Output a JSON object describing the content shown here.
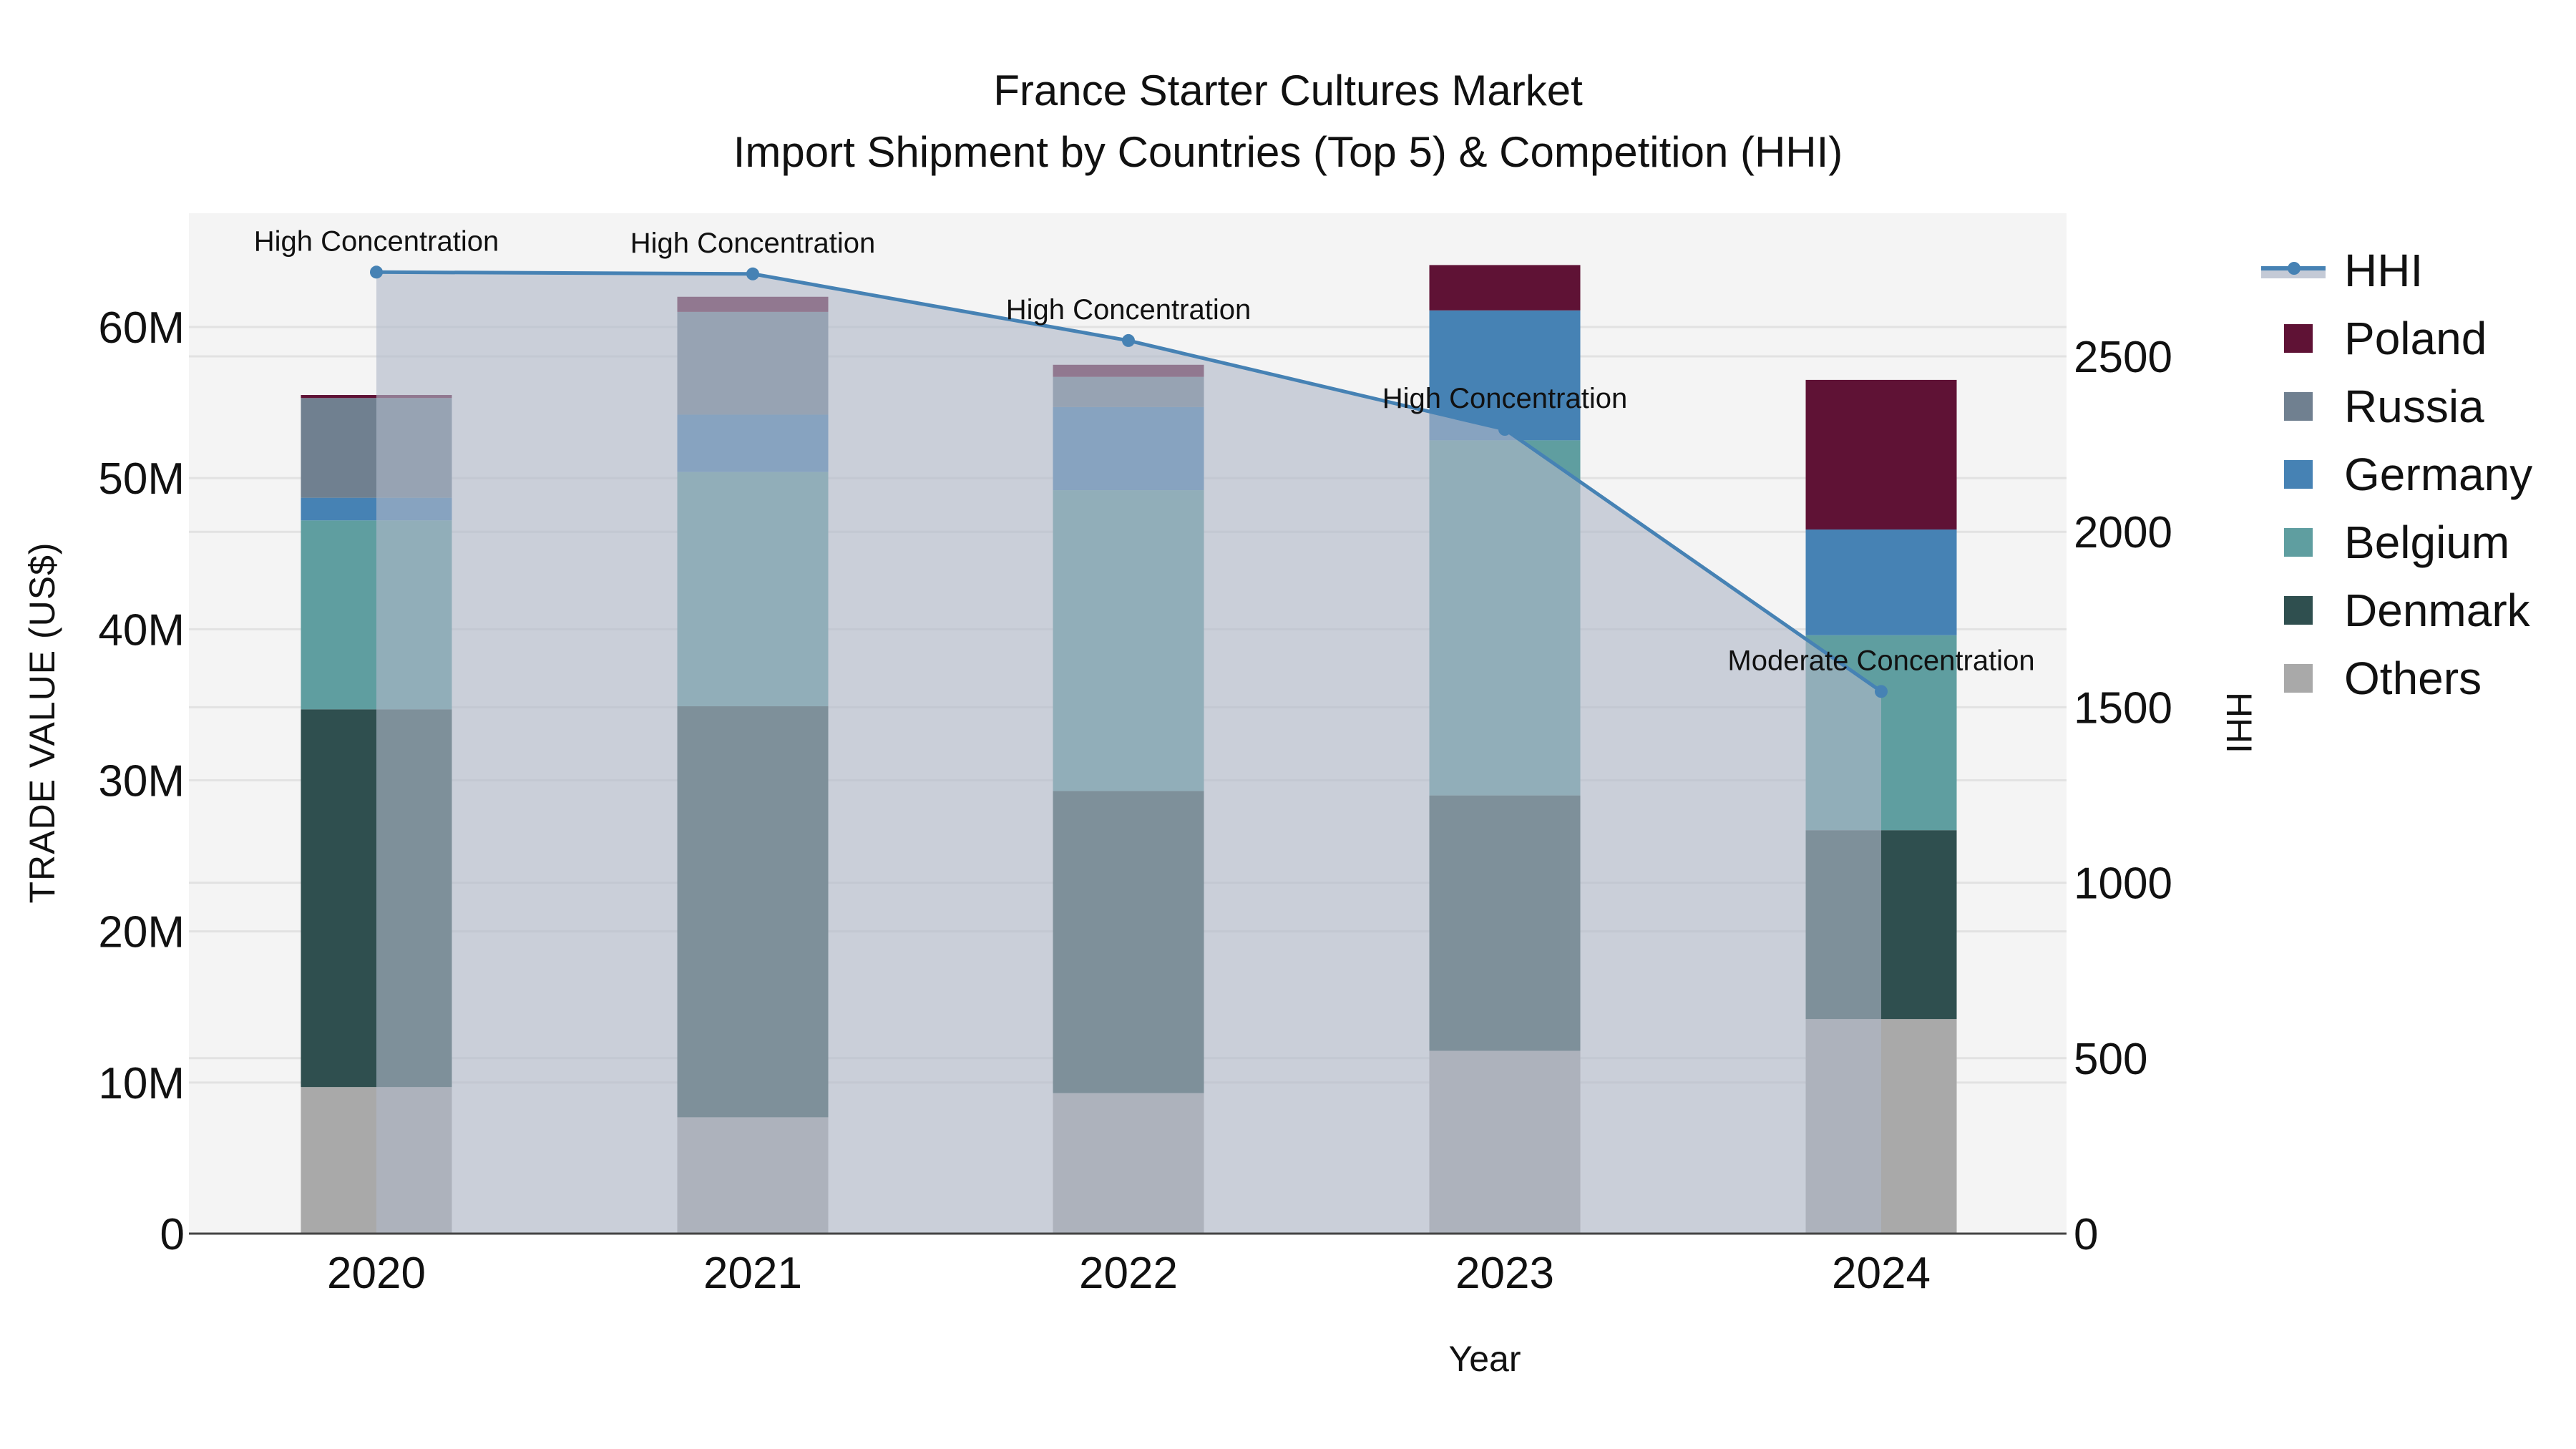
{
  "title": {
    "line1": "France Starter Cultures Market",
    "line2": "Import Shipment by Countries (Top 5) & Competition (HHI)"
  },
  "axes": {
    "x_title": "Year",
    "y_title": "TRADE VALUE (US$)",
    "y2_title": "HHI",
    "y_ticks": [
      "0",
      "10M",
      "20M",
      "30M",
      "40M",
      "50M",
      "60M"
    ],
    "y2_ticks": [
      "0",
      "500",
      "1000",
      "1500",
      "2000",
      "2500"
    ]
  },
  "legend": {
    "items": [
      {
        "label": "HHI",
        "type": "line",
        "color": "#4682B4"
      },
      {
        "label": "Poland",
        "type": "bar",
        "color": "#5F1235"
      },
      {
        "label": "Russia",
        "type": "bar",
        "color": "#708090"
      },
      {
        "label": "Germany",
        "type": "bar",
        "color": "#4682B4"
      },
      {
        "label": "Belgium",
        "type": "bar",
        "color": "#5F9EA0"
      },
      {
        "label": "Denmark",
        "type": "bar",
        "color": "#2F4F4F"
      },
      {
        "label": "Others",
        "type": "bar",
        "color": "#A9A9A9"
      }
    ]
  },
  "chart_data": {
    "type": "bar",
    "stacked": true,
    "title": "France Starter Cultures Market — Import Shipment by Countries (Top 5) & Competition (HHI)",
    "xlabel": "Year",
    "ylabel": "TRADE VALUE (US$)",
    "y2label": "HHI",
    "ylim": [
      0,
      67500000
    ],
    "y2lim": [
      0,
      2880
    ],
    "grid": true,
    "legend_position": "right",
    "categories": [
      "2020",
      "2021",
      "2022",
      "2023",
      "2024"
    ],
    "series": [
      {
        "name": "Others",
        "color": "#A9A9A9",
        "values": [
          9700000,
          7700000,
          9300000,
          12100000,
          14200000
        ]
      },
      {
        "name": "Denmark",
        "color": "#2F4F4F",
        "values": [
          25000000,
          27200000,
          20000000,
          16900000,
          12500000
        ]
      },
      {
        "name": "Belgium",
        "color": "#5F9EA0",
        "values": [
          12500000,
          15500000,
          19900000,
          23500000,
          12900000
        ]
      },
      {
        "name": "Germany",
        "color": "#4682B4",
        "values": [
          1500000,
          3800000,
          5500000,
          8600000,
          7000000
        ]
      },
      {
        "name": "Russia",
        "color": "#708090",
        "values": [
          6600000,
          6800000,
          2000000,
          0,
          0
        ]
      },
      {
        "name": "Poland",
        "color": "#5F1235",
        "values": [
          200000,
          1000000,
          800000,
          3000000,
          9900000
        ]
      }
    ],
    "line_series": {
      "name": "HHI",
      "axis": "y2",
      "color": "#4682B4",
      "values": [
        2740,
        2735,
        2545,
        2292,
        1545
      ],
      "annotations": [
        "High Concentration",
        "High Concentration",
        "High Concentration",
        "High Concentration",
        "Moderate Concentration"
      ]
    }
  }
}
